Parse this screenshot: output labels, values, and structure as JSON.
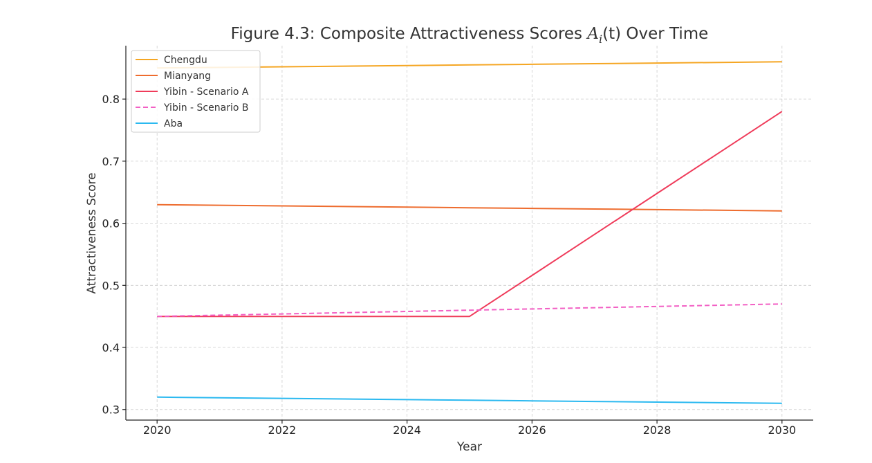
{
  "chart_data": {
    "type": "line",
    "title": {
      "prefix": "Figure 4.3: Composite Attractiveness Scores ",
      "math_main": "A",
      "math_sub": "i",
      "math_paren": "(t)",
      "suffix": " Over Time"
    },
    "xlabel": "Year",
    "ylabel": "Attractiveness Score",
    "xlim": [
      2019.5,
      2030.5
    ],
    "ylim": [
      0.283,
      0.886
    ],
    "xticks": [
      2020,
      2022,
      2024,
      2026,
      2028,
      2030
    ],
    "yticks": [
      0.3,
      0.4,
      0.5,
      0.6,
      0.7,
      0.8
    ],
    "grid": true,
    "legend_position": "top-left",
    "x": [
      2020,
      2021,
      2022,
      2023,
      2024,
      2025,
      2026,
      2027,
      2028,
      2029,
      2030
    ],
    "series": [
      {
        "name": "Chengdu",
        "color": "#f5a623",
        "dash": false,
        "values": [
          0.85,
          0.851,
          0.852,
          0.853,
          0.854,
          0.855,
          0.856,
          0.857,
          0.858,
          0.859,
          0.86
        ]
      },
      {
        "name": "Mianyang",
        "color": "#ee6c2e",
        "dash": false,
        "values": [
          0.63,
          0.629,
          0.628,
          0.627,
          0.626,
          0.625,
          0.624,
          0.623,
          0.622,
          0.621,
          0.62
        ]
      },
      {
        "name": "Yibin - Scenario A",
        "color": "#ef3b5a",
        "dash": false,
        "values": [
          0.45,
          0.45,
          0.45,
          0.45,
          0.45,
          0.45,
          0.516,
          0.582,
          0.648,
          0.714,
          0.78
        ]
      },
      {
        "name": "Yibin - Scenario B",
        "color": "#f25fc4",
        "dash": true,
        "values": [
          0.45,
          0.452,
          0.454,
          0.456,
          0.458,
          0.46,
          0.462,
          0.464,
          0.466,
          0.468,
          0.47
        ]
      },
      {
        "name": "Aba",
        "color": "#2bb9f0",
        "dash": false,
        "values": [
          0.32,
          0.319,
          0.318,
          0.317,
          0.316,
          0.315,
          0.314,
          0.313,
          0.312,
          0.311,
          0.31
        ]
      }
    ]
  }
}
